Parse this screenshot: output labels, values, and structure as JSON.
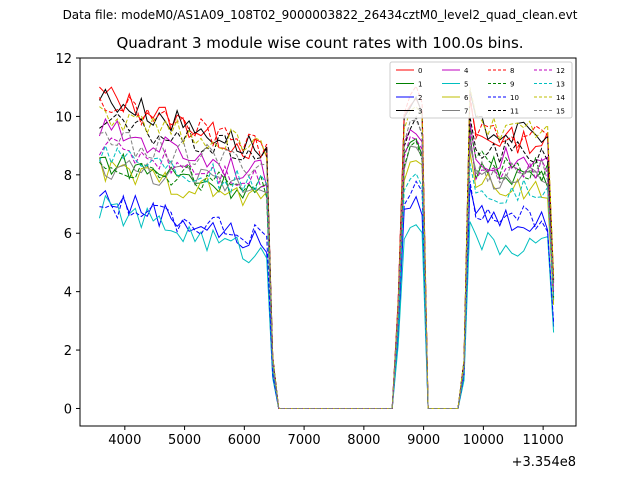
{
  "file_label": "Data file: modeM0/AS1A09_108T02_9000003822_26434cztM0_level2_quad_clean.evt",
  "chart_data": {
    "type": "line",
    "title": "Quadrant 3 module wise count rates with 100.0s bins.",
    "xlabel": "",
    "ylabel": "",
    "x_offset_label": "+3.354e8",
    "xlim": [
      3250,
      11550
    ],
    "ylim": [
      -0.6,
      12
    ],
    "xticks": [
      4000,
      5000,
      6000,
      7000,
      8000,
      9000,
      10000,
      11000
    ],
    "yticks": [
      0,
      2,
      4,
      6,
      8,
      10,
      12
    ],
    "grid": false,
    "legend_position": "top-right",
    "profile": [
      {
        "x": 3575,
        "level": 1.0
      },
      {
        "x": 6375,
        "level": 0.92
      },
      {
        "x": 6475,
        "level": 0.2
      },
      {
        "x": 6575,
        "level": 0.0
      },
      {
        "x": 8475,
        "level": 0.0
      },
      {
        "x": 8575,
        "level": 0.35
      },
      {
        "x": 8675,
        "level": 0.95
      },
      {
        "x": 8775,
        "level": 1.0
      },
      {
        "x": 8875,
        "level": 1.02
      },
      {
        "x": 8975,
        "level": 0.97
      },
      {
        "x": 9075,
        "level": 0.0
      },
      {
        "x": 9575,
        "level": 0.0
      },
      {
        "x": 9675,
        "level": 0.15
      },
      {
        "x": 9775,
        "level": 1.05
      },
      {
        "x": 11175,
        "level": 0.5
      }
    ],
    "series": [
      {
        "name": "0",
        "color": "#ff0000",
        "dash": "solid",
        "start": 10.8,
        "end": 8.7,
        "peak1": 10.4,
        "peak2": 10.6
      },
      {
        "name": "1",
        "color": "#008000",
        "dash": "solid",
        "start": 8.5,
        "end": 7.4,
        "peak1": 9.0,
        "peak2": 9.4
      },
      {
        "name": "2",
        "color": "#0000ff",
        "dash": "solid",
        "start": 7.3,
        "end": 5.6,
        "peak1": 7.0,
        "peak2": 7.6
      },
      {
        "name": "3",
        "color": "#000000",
        "dash": "solid",
        "start": 10.7,
        "end": 8.8,
        "peak1": 10.3,
        "peak2": 10.9
      },
      {
        "name": "4",
        "color": "#bf00bf",
        "dash": "solid",
        "start": 9.6,
        "end": 8.0,
        "peak1": 9.4,
        "peak2": 9.8
      },
      {
        "name": "5",
        "color": "#00bfbf",
        "dash": "solid",
        "start": 6.9,
        "end": 5.2,
        "peak1": 6.3,
        "peak2": 6.4
      },
      {
        "name": "6",
        "color": "#bfbf00",
        "dash": "solid",
        "start": 8.2,
        "end": 7.1,
        "peak1": 8.4,
        "peak2": 8.8
      },
      {
        "name": "7",
        "color": "#808080",
        "dash": "solid",
        "start": 8.3,
        "end": 7.6,
        "peak1": 8.8,
        "peak2": 9.0
      },
      {
        "name": "8",
        "color": "#ff0000",
        "dash": "dashed",
        "start": 10.5,
        "end": 8.9,
        "peak1": 10.8,
        "peak2": 10.8
      },
      {
        "name": "9",
        "color": "#008000",
        "dash": "dashed",
        "start": 8.4,
        "end": 7.6,
        "peak1": 8.9,
        "peak2": 9.6
      },
      {
        "name": "10",
        "color": "#0000ff",
        "dash": "dashed",
        "start": 7.0,
        "end": 5.9,
        "peak1": 7.5,
        "peak2": 7.8
      },
      {
        "name": "11",
        "color": "#000000",
        "dash": "dashed",
        "start": 9.8,
        "end": 8.6,
        "peak1": 9.6,
        "peak2": 10.0
      },
      {
        "name": "12",
        "color": "#bf00bf",
        "dash": "dashed",
        "start": 9.0,
        "end": 7.8,
        "peak1": 9.2,
        "peak2": 9.4
      },
      {
        "name": "13",
        "color": "#00bfbf",
        "dash": "dashed",
        "start": 8.9,
        "end": 7.5,
        "peak1": 8.0,
        "peak2": 8.4
      },
      {
        "name": "14",
        "color": "#bfbf00",
        "dash": "dashed",
        "start": 10.0,
        "end": 8.9,
        "peak1": 10.2,
        "peak2": 11.0
      },
      {
        "name": "15",
        "color": "#808080",
        "dash": "dashed",
        "start": 9.2,
        "end": 8.3,
        "peak1": 9.7,
        "peak2": 9.2
      }
    ]
  }
}
